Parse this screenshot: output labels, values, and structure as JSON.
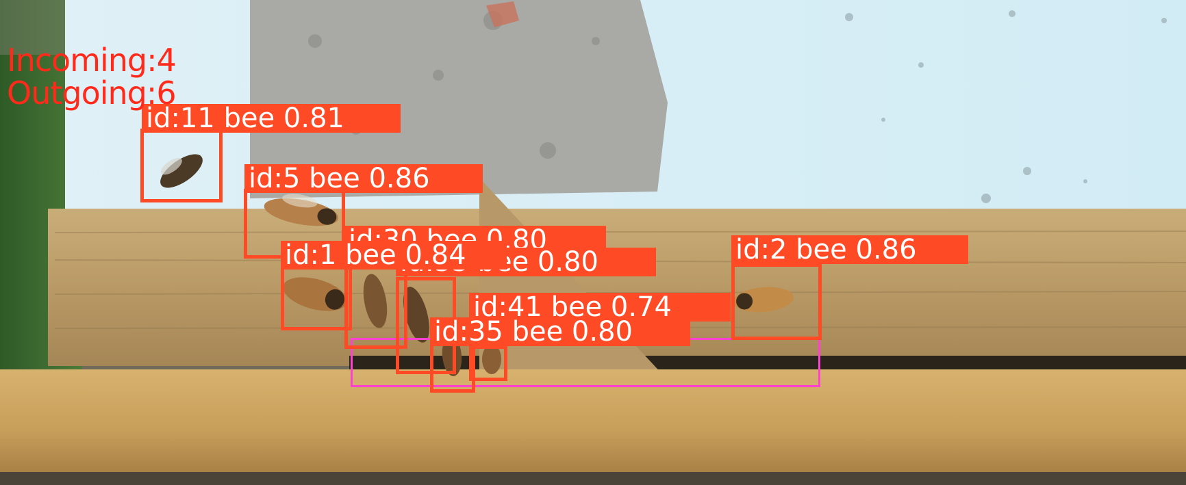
{
  "counters": {
    "incoming": "Incoming:4",
    "outgoing": "Outgoing:6"
  },
  "colors": {
    "box": "#ff4a26",
    "label_bg": "#ff4a26",
    "label_text": "#ffffff",
    "counter_text": "#ff2a1a",
    "zone": "#ff40d0"
  },
  "detections": [
    {
      "label": "id:11 bee 0.81"
    },
    {
      "label": "id:5 bee 0.86"
    },
    {
      "label": "id:30 bee 0.80"
    },
    {
      "label": "id:1 bee 0.84"
    },
    {
      "label": "id:33 bee 0.80"
    },
    {
      "label": "id:2 bee 0.86"
    },
    {
      "label": "id:41 bee 0.74"
    },
    {
      "label": "id:35 bee 0.80"
    }
  ]
}
